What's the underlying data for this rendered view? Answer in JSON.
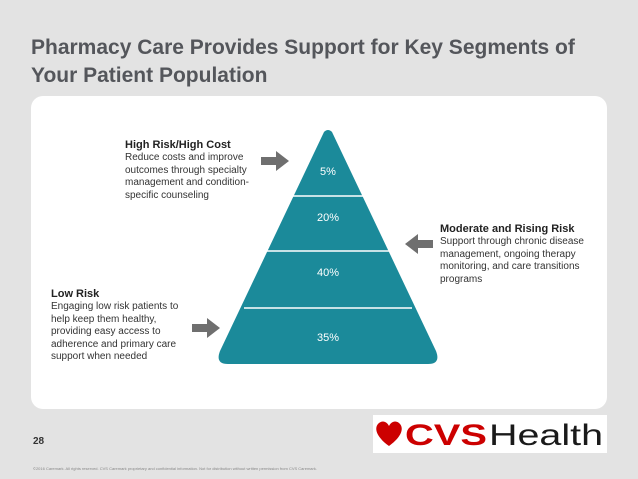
{
  "title": "Pharmacy Care Provides Support for Key Segments of Your Patient Population",
  "pyramid": {
    "segments": [
      "5%",
      "20%",
      "40%",
      "35%"
    ],
    "color": "#1b8a9a"
  },
  "callouts": {
    "high": {
      "heading": "High Risk/High Cost",
      "body": "Reduce costs and improve outcomes through specialty management and condition-specific counseling"
    },
    "moderate": {
      "heading": "Moderate and Rising Risk",
      "body": "Support through chronic disease management, ongoing therapy monitoring, and care transitions programs"
    },
    "low": {
      "heading": "Low Risk",
      "body": "Engaging low risk patients to help keep them healthy, providing easy access to adherence and primary care support when needed"
    }
  },
  "page_number": "28",
  "footer": "©2016 Caremark. All rights reserved. CVS Caremark proprietary and confidential information. Not for distribution without written permission from CVS Caremark.",
  "logo": {
    "text_cvs": "CVS",
    "text_health": "Health",
    "color": "#cc0000"
  }
}
